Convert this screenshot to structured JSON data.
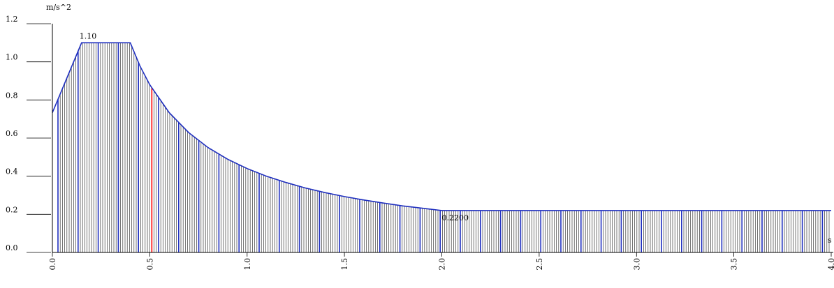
{
  "chart_data": {
    "type": "area",
    "title": "",
    "xlabel": "",
    "ylabel": "",
    "y_unit": "m/s^2",
    "x_unit": "s",
    "xlim": [
      0.0,
      4.0
    ],
    "ylim": [
      0.0,
      1.2
    ],
    "x_ticks": [
      "0.0",
      "0.5",
      "1.0",
      "1.5",
      "2.0",
      "2.5",
      "3.0",
      "3.5",
      "4.0"
    ],
    "y_ticks": [
      "0.0",
      "0.2",
      "0.4",
      "0.6",
      "0.8",
      "1.0",
      "1.2"
    ],
    "grid": false,
    "legend": "none",
    "annotations": [
      {
        "text": "1.10",
        "x": 0.15,
        "y": 1.1
      },
      {
        "text": "0.2200",
        "x": 2.0,
        "y": 0.22
      }
    ],
    "marker": {
      "x": 0.5,
      "color": "#ff0000"
    },
    "series": [
      {
        "x": [
          0.0,
          0.05,
          0.1,
          0.15,
          0.4,
          0.45,
          0.5,
          0.6,
          0.7,
          0.8,
          0.9,
          1.0,
          1.1,
          1.2,
          1.3,
          1.4,
          1.5,
          1.6,
          1.7,
          1.8,
          1.9,
          2.0,
          4.0
        ],
        "y": [
          0.733,
          0.855,
          0.978,
          1.1,
          1.1,
          0.978,
          0.88,
          0.733,
          0.629,
          0.55,
          0.489,
          0.44,
          0.4,
          0.367,
          0.338,
          0.314,
          0.293,
          0.275,
          0.259,
          0.244,
          0.232,
          0.22,
          0.22
        ]
      }
    ],
    "colors": {
      "curve": "#1f2fbf",
      "fill_lines": "#3a3a3a",
      "highlight_lines": "#1f2fbf",
      "axis": "#000000"
    }
  }
}
